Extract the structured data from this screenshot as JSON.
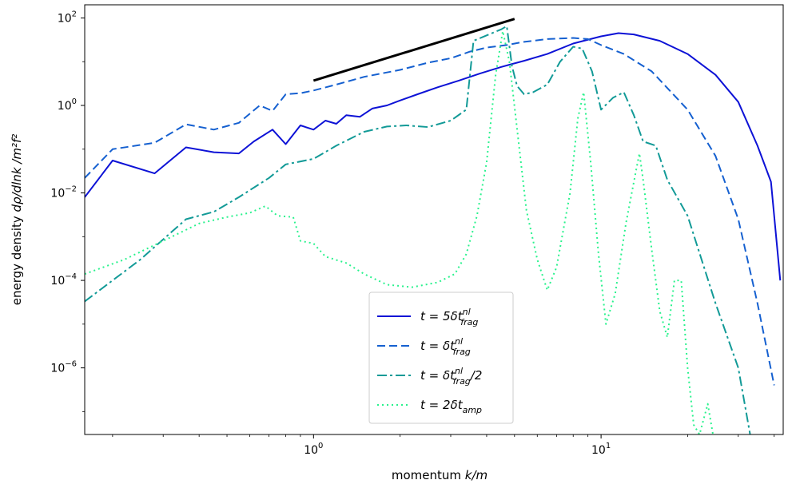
{
  "chart_data": {
    "type": "line",
    "xlabel": "momentum k/m",
    "ylabel": "energy density dρ/dlnk /m²f²",
    "xscale": "log",
    "yscale": "log",
    "xlim": [
      0.16,
      43
    ],
    "ylim": [
      3e-08,
      200
    ],
    "grid": false,
    "legend_position": "lower-center",
    "x_ticks": [
      {
        "value": 1,
        "base": "10",
        "exp": "0"
      },
      {
        "value": 10,
        "base": "10",
        "exp": "1"
      }
    ],
    "y_ticks": [
      {
        "value": 100,
        "base": "10",
        "exp": "2"
      },
      {
        "value": 1,
        "base": "10",
        "exp": "0"
      },
      {
        "value": 0.01,
        "base": "10",
        "exp": "−2"
      },
      {
        "value": 0.0001,
        "base": "10",
        "exp": "−4"
      },
      {
        "value": 1e-06,
        "base": "10",
        "exp": "−6"
      }
    ],
    "reference_line": {
      "x": [
        1.0,
        5.0
      ],
      "y": [
        3.7,
        95
      ],
      "color": "#000000"
    },
    "series": [
      {
        "name": "t = 5δt_frag^nl",
        "legend": {
          "lhs": "t = 5δt",
          "sub": "frag",
          "sup": "nl",
          "tail": ""
        },
        "color": "#0d12d6",
        "dash": "",
        "points": [
          [
            0.16,
            0.008
          ],
          [
            0.2,
            0.055
          ],
          [
            0.28,
            0.028
          ],
          [
            0.36,
            0.11
          ],
          [
            0.45,
            0.085
          ],
          [
            0.55,
            0.08
          ],
          [
            0.62,
            0.15
          ],
          [
            0.72,
            0.28
          ],
          [
            0.8,
            0.13
          ],
          [
            0.9,
            0.35
          ],
          [
            1.0,
            0.28
          ],
          [
            1.1,
            0.45
          ],
          [
            1.2,
            0.38
          ],
          [
            1.3,
            0.6
          ],
          [
            1.45,
            0.55
          ],
          [
            1.6,
            0.85
          ],
          [
            1.8,
            1.0
          ],
          [
            2.0,
            1.3
          ],
          [
            2.3,
            1.8
          ],
          [
            2.7,
            2.6
          ],
          [
            3.2,
            3.7
          ],
          [
            3.8,
            5.4
          ],
          [
            4.5,
            7.6
          ],
          [
            5.4,
            10.5
          ],
          [
            6.5,
            15
          ],
          [
            8.0,
            26
          ],
          [
            10.0,
            38
          ],
          [
            11.5,
            45
          ],
          [
            13.0,
            42
          ],
          [
            16.0,
            30
          ],
          [
            20.0,
            15
          ],
          [
            25.0,
            5
          ],
          [
            30.0,
            1.2
          ],
          [
            35.0,
            0.12
          ],
          [
            39.0,
            0.018
          ],
          [
            42.0,
            0.0001
          ]
        ]
      },
      {
        "name": "t = δt_frag^nl",
        "legend": {
          "lhs": "t = δt",
          "sub": "frag",
          "sup": "nl",
          "tail": ""
        },
        "color": "#1560d0",
        "dash": "10,5",
        "points": [
          [
            0.16,
            0.022
          ],
          [
            0.2,
            0.1
          ],
          [
            0.28,
            0.14
          ],
          [
            0.36,
            0.37
          ],
          [
            0.45,
            0.28
          ],
          [
            0.55,
            0.4
          ],
          [
            0.65,
            1.0
          ],
          [
            0.72,
            0.75
          ],
          [
            0.8,
            1.8
          ],
          [
            0.9,
            1.9
          ],
          [
            1.0,
            2.2
          ],
          [
            1.2,
            3.0
          ],
          [
            1.5,
            4.5
          ],
          [
            2.0,
            6.5
          ],
          [
            2.5,
            9.5
          ],
          [
            3.0,
            12
          ],
          [
            3.5,
            17
          ],
          [
            4.0,
            21
          ],
          [
            4.7,
            24
          ],
          [
            5.3,
            28
          ],
          [
            6.5,
            33
          ],
          [
            8.0,
            35
          ],
          [
            9.0,
            33
          ],
          [
            10.0,
            24
          ],
          [
            12.0,
            15
          ],
          [
            15.0,
            6
          ],
          [
            20.0,
            0.8
          ],
          [
            25.0,
            0.07
          ],
          [
            30.0,
            0.0025
          ],
          [
            35.0,
            3e-05
          ],
          [
            40.0,
            4e-07
          ]
        ]
      },
      {
        "name": "t = δt_frag^nl/2",
        "legend": {
          "lhs": "t = δt",
          "sub": "frag",
          "sup": "nl",
          "tail": "/2"
        },
        "color": "#129a97",
        "dash": "12,4,3,4",
        "points": [
          [
            0.16,
            3.3e-05
          ],
          [
            0.25,
            0.0003
          ],
          [
            0.36,
            0.0025
          ],
          [
            0.45,
            0.0037
          ],
          [
            0.55,
            0.008
          ],
          [
            0.7,
            0.022
          ],
          [
            0.8,
            0.045
          ],
          [
            1.0,
            0.06
          ],
          [
            1.2,
            0.12
          ],
          [
            1.5,
            0.25
          ],
          [
            1.8,
            0.33
          ],
          [
            2.1,
            0.35
          ],
          [
            2.5,
            0.32
          ],
          [
            3.0,
            0.45
          ],
          [
            3.4,
            0.8
          ],
          [
            3.6,
            30
          ],
          [
            4.0,
            40
          ],
          [
            4.5,
            55
          ],
          [
            4.7,
            65
          ],
          [
            4.9,
            8
          ],
          [
            5.1,
            2.8
          ],
          [
            5.4,
            1.8
          ],
          [
            5.8,
            2.0
          ],
          [
            6.5,
            3.0
          ],
          [
            7.2,
            10
          ],
          [
            8.0,
            22
          ],
          [
            8.6,
            20
          ],
          [
            9.3,
            6
          ],
          [
            10.0,
            0.8
          ],
          [
            11.0,
            1.5
          ],
          [
            12.0,
            2.0
          ],
          [
            13.0,
            0.6
          ],
          [
            14.0,
            0.15
          ],
          [
            15.5,
            0.12
          ],
          [
            17.0,
            0.02
          ],
          [
            20.0,
            0.003
          ],
          [
            25.0,
            3e-05
          ],
          [
            30.0,
            1e-06
          ],
          [
            33.0,
            3e-08
          ]
        ]
      },
      {
        "name": "t = 2δt_amp",
        "legend": {
          "lhs": "t = 2δt",
          "sub": "amp",
          "sup": "",
          "tail": ""
        },
        "color": "#29f28d",
        "dash": "2,4",
        "points": [
          [
            0.16,
            0.00014
          ],
          [
            0.22,
            0.0003
          ],
          [
            0.3,
            0.0008
          ],
          [
            0.4,
            0.002
          ],
          [
            0.5,
            0.0028
          ],
          [
            0.6,
            0.0035
          ],
          [
            0.68,
            0.005
          ],
          [
            0.75,
            0.003
          ],
          [
            0.85,
            0.0028
          ],
          [
            0.9,
            0.0008
          ],
          [
            1.0,
            0.0007
          ],
          [
            1.1,
            0.00035
          ],
          [
            1.3,
            0.00025
          ],
          [
            1.5,
            0.00014
          ],
          [
            1.8,
            8e-05
          ],
          [
            2.2,
            7e-05
          ],
          [
            2.7,
            9e-05
          ],
          [
            3.1,
            0.00014
          ],
          [
            3.4,
            0.0004
          ],
          [
            3.7,
            0.003
          ],
          [
            4.0,
            0.05
          ],
          [
            4.3,
            5
          ],
          [
            4.55,
            50
          ],
          [
            4.8,
            10
          ],
          [
            5.1,
            0.3
          ],
          [
            5.5,
            0.004
          ],
          [
            6.0,
            0.0003
          ],
          [
            6.5,
            6e-05
          ],
          [
            7.0,
            0.0002
          ],
          [
            7.8,
            0.01
          ],
          [
            8.3,
            0.5
          ],
          [
            8.7,
            2
          ],
          [
            9.2,
            0.05
          ],
          [
            9.8,
            0.0004
          ],
          [
            10.4,
            1e-05
          ],
          [
            11.2,
            5e-05
          ],
          [
            12.2,
            0.002
          ],
          [
            13.2,
            0.03
          ],
          [
            13.6,
            0.08
          ],
          [
            14.0,
            0.02
          ],
          [
            15.0,
            0.0005
          ],
          [
            16.0,
            2e-05
          ],
          [
            17.0,
            5e-06
          ],
          [
            18.0,
            0.0001
          ],
          [
            19.0,
            0.0001
          ],
          [
            20.0,
            1e-06
          ],
          [
            21.0,
            5e-08
          ],
          [
            22.0,
            3e-08
          ],
          [
            23.5,
            1.5e-07
          ],
          [
            24.5,
            3e-08
          ]
        ]
      }
    ]
  }
}
